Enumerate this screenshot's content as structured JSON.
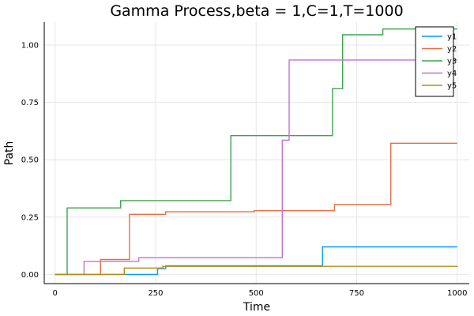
{
  "chart_data": {
    "type": "line",
    "title": "Gamma Process,beta = 1,C=1,T=1000",
    "xlabel": "Time",
    "ylabel": "Path",
    "xlim": [
      -27,
      1030
    ],
    "ylim": [
      -0.04,
      1.1
    ],
    "x_ticks": [
      0,
      250,
      500,
      750,
      1000
    ],
    "x_tick_labels": [
      "0",
      "250",
      "500",
      "750",
      "1000"
    ],
    "y_ticks": [
      0,
      0.25,
      0.5,
      0.75,
      1.0
    ],
    "y_tick_labels": [
      "0.00",
      "0.25",
      "0.50",
      "0.75",
      "1.00"
    ],
    "grid": true,
    "legend_position": "top-right",
    "series": [
      {
        "name": "y1",
        "color": "#009AFA",
        "steps": [
          [
            0,
            0
          ],
          [
            255,
            0.025
          ],
          [
            275,
            0.038
          ],
          [
            665,
            0.12
          ],
          [
            1000,
            0.12
          ]
        ]
      },
      {
        "name": "y2",
        "color": "#E36F47",
        "steps": [
          [
            0,
            0
          ],
          [
            113,
            0.065
          ],
          [
            185,
            0.262
          ],
          [
            275,
            0.273
          ],
          [
            495,
            0.278
          ],
          [
            695,
            0.305
          ],
          [
            835,
            0.572
          ],
          [
            1000,
            0.572
          ]
        ]
      },
      {
        "name": "y3",
        "color": "#3EA44E",
        "steps": [
          [
            0,
            0
          ],
          [
            30,
            0.29
          ],
          [
            163,
            0.322
          ],
          [
            437,
            0.605
          ],
          [
            690,
            0.81
          ],
          [
            715,
            1.045
          ],
          [
            815,
            1.07
          ],
          [
            1000,
            1.07
          ]
        ]
      },
      {
        "name": "y4",
        "color": "#C371D2",
        "steps": [
          [
            0,
            0
          ],
          [
            72,
            0.057
          ],
          [
            208,
            0.073
          ],
          [
            565,
            0.585
          ],
          [
            582,
            0.935
          ],
          [
            1000,
            0.935
          ]
        ]
      },
      {
        "name": "y5",
        "color": "#AC8D18",
        "steps": [
          [
            0,
            0
          ],
          [
            172,
            0.028
          ],
          [
            268,
            0.035
          ],
          [
            1000,
            0.038
          ]
        ]
      }
    ]
  }
}
